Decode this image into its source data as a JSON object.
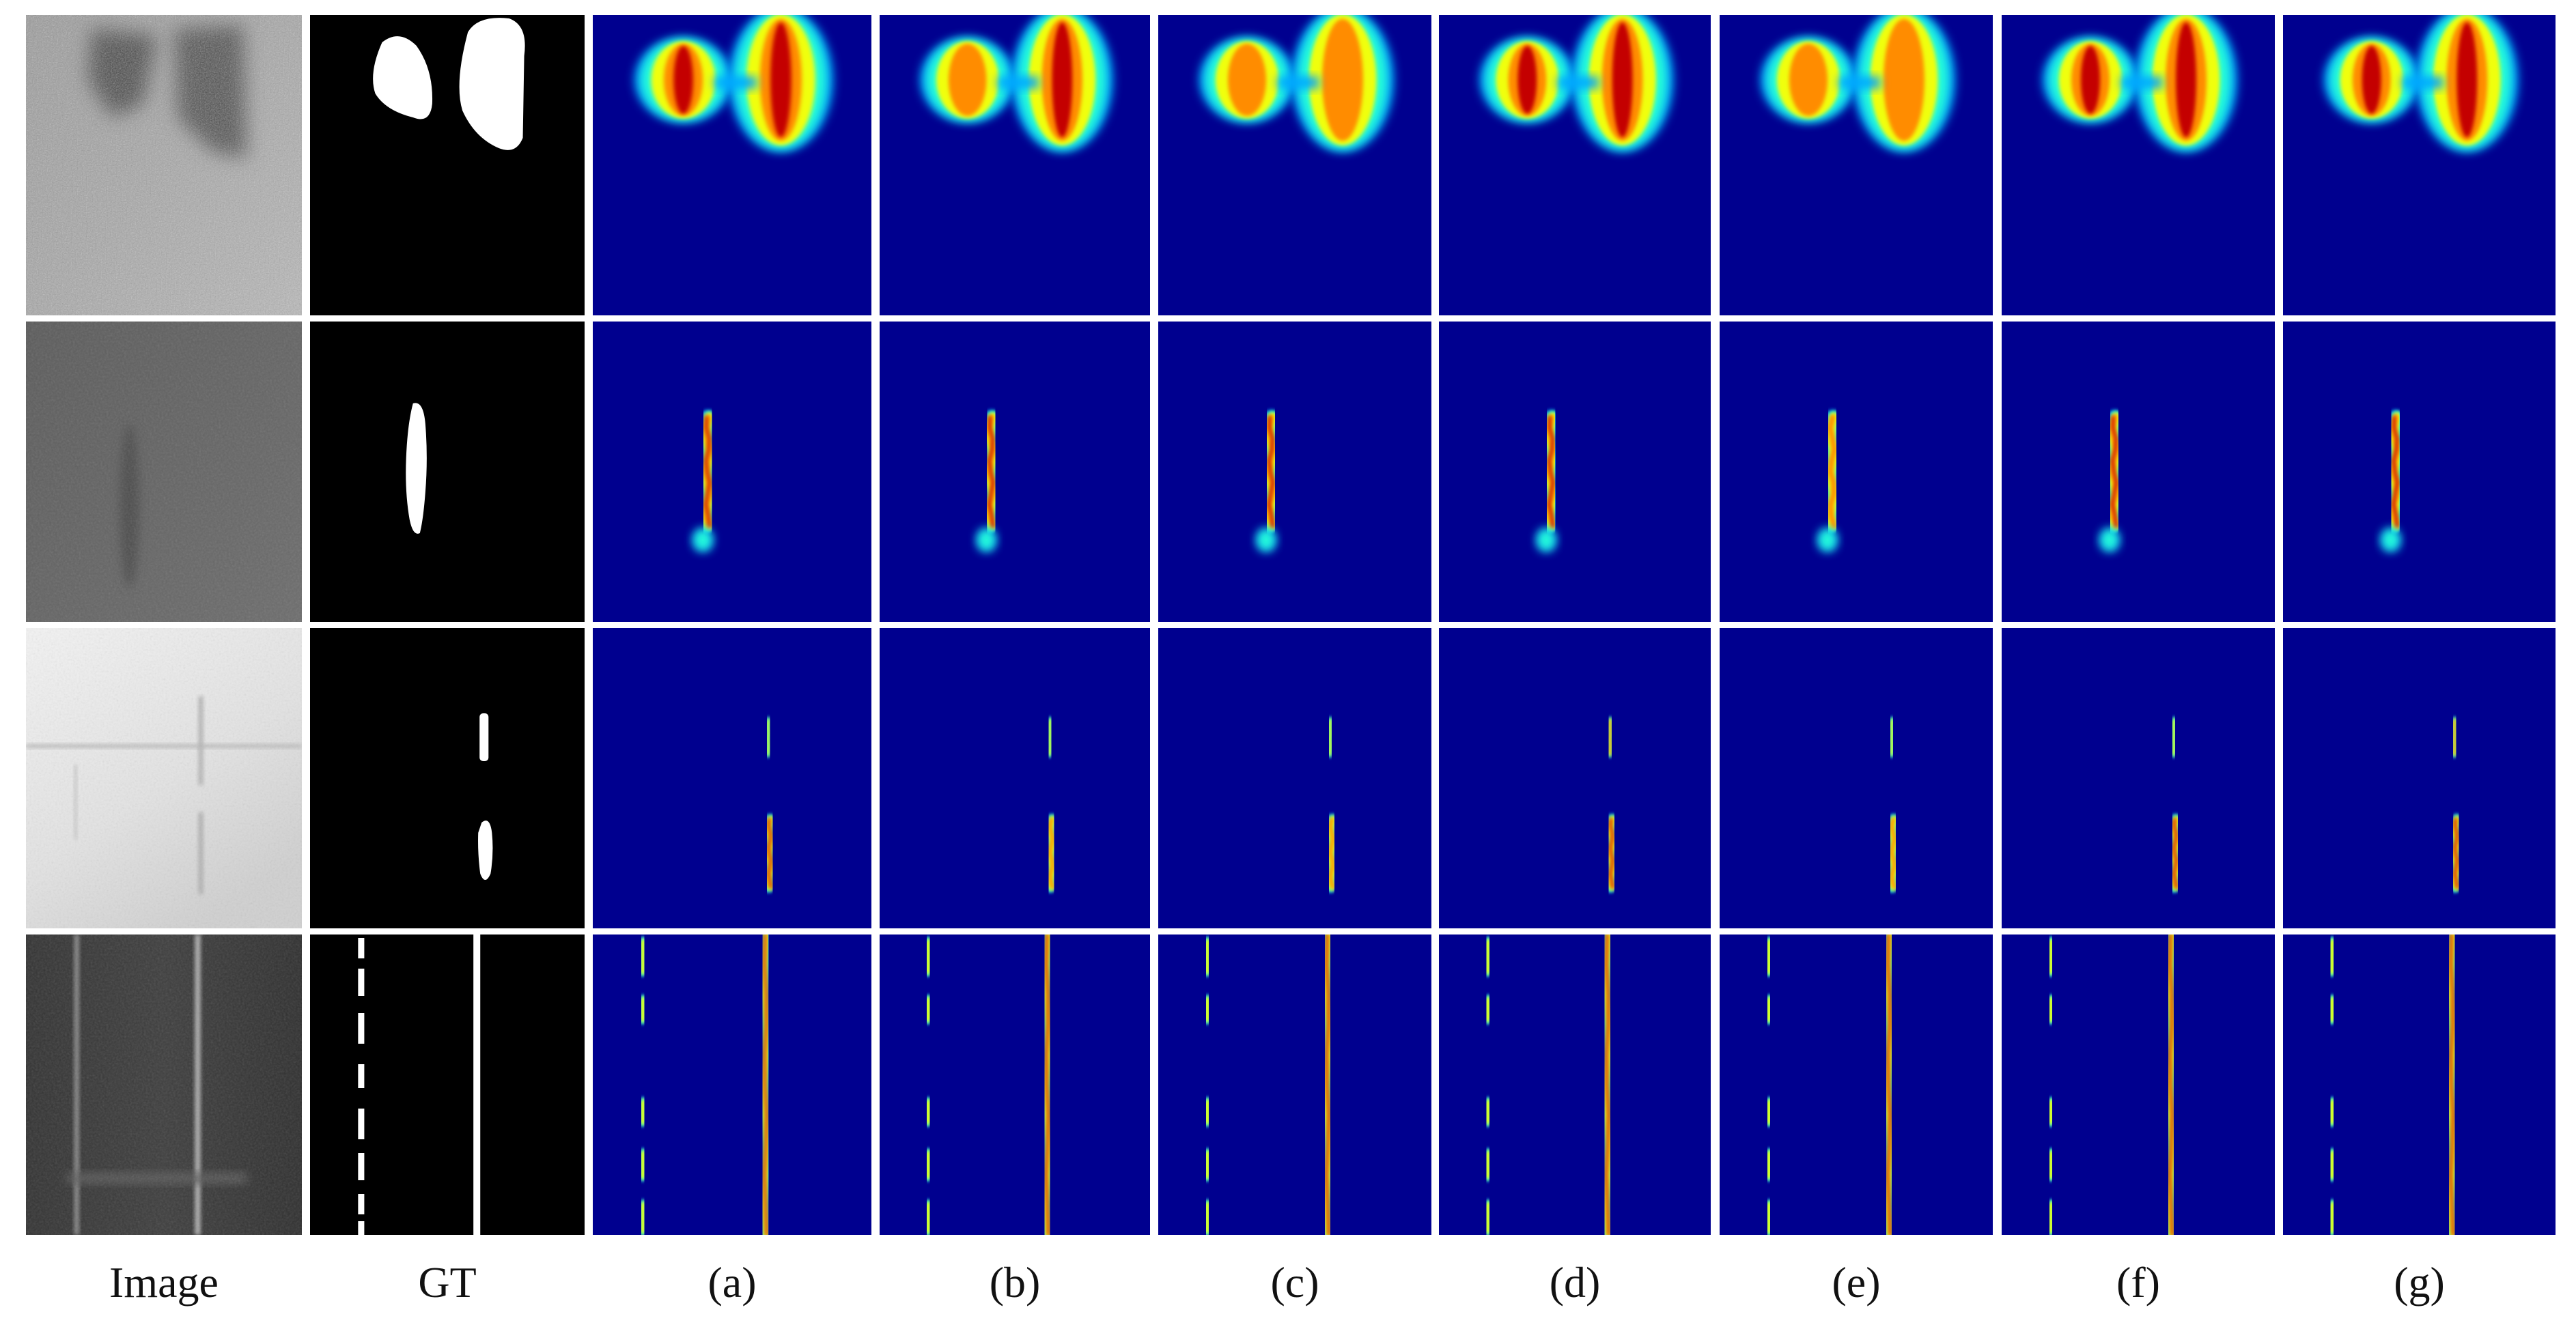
{
  "figure": {
    "columns": [
      {
        "key": "image",
        "label": "Image"
      },
      {
        "key": "gt",
        "label": "GT"
      },
      {
        "key": "a",
        "label": "(a)"
      },
      {
        "key": "b",
        "label": "(b)"
      },
      {
        "key": "c",
        "label": "(c)"
      },
      {
        "key": "d",
        "label": "(d)"
      },
      {
        "key": "e",
        "label": "(e)"
      },
      {
        "key": "f",
        "label": "(f)"
      },
      {
        "key": "g",
        "label": "(g)"
      }
    ],
    "rows": [
      {
        "name": "row-1-patch-defects"
      },
      {
        "name": "row-2-single-streak"
      },
      {
        "name": "row-3-small-streaks"
      },
      {
        "name": "row-4-long-vertical-lines"
      }
    ],
    "colormap": {
      "background": "#00008f",
      "low": "#00a9ff",
      "midlow": "#27ffd7",
      "mid": "#f0ff0f",
      "midhigh": "#ff8c00",
      "high": "#c40000"
    }
  }
}
